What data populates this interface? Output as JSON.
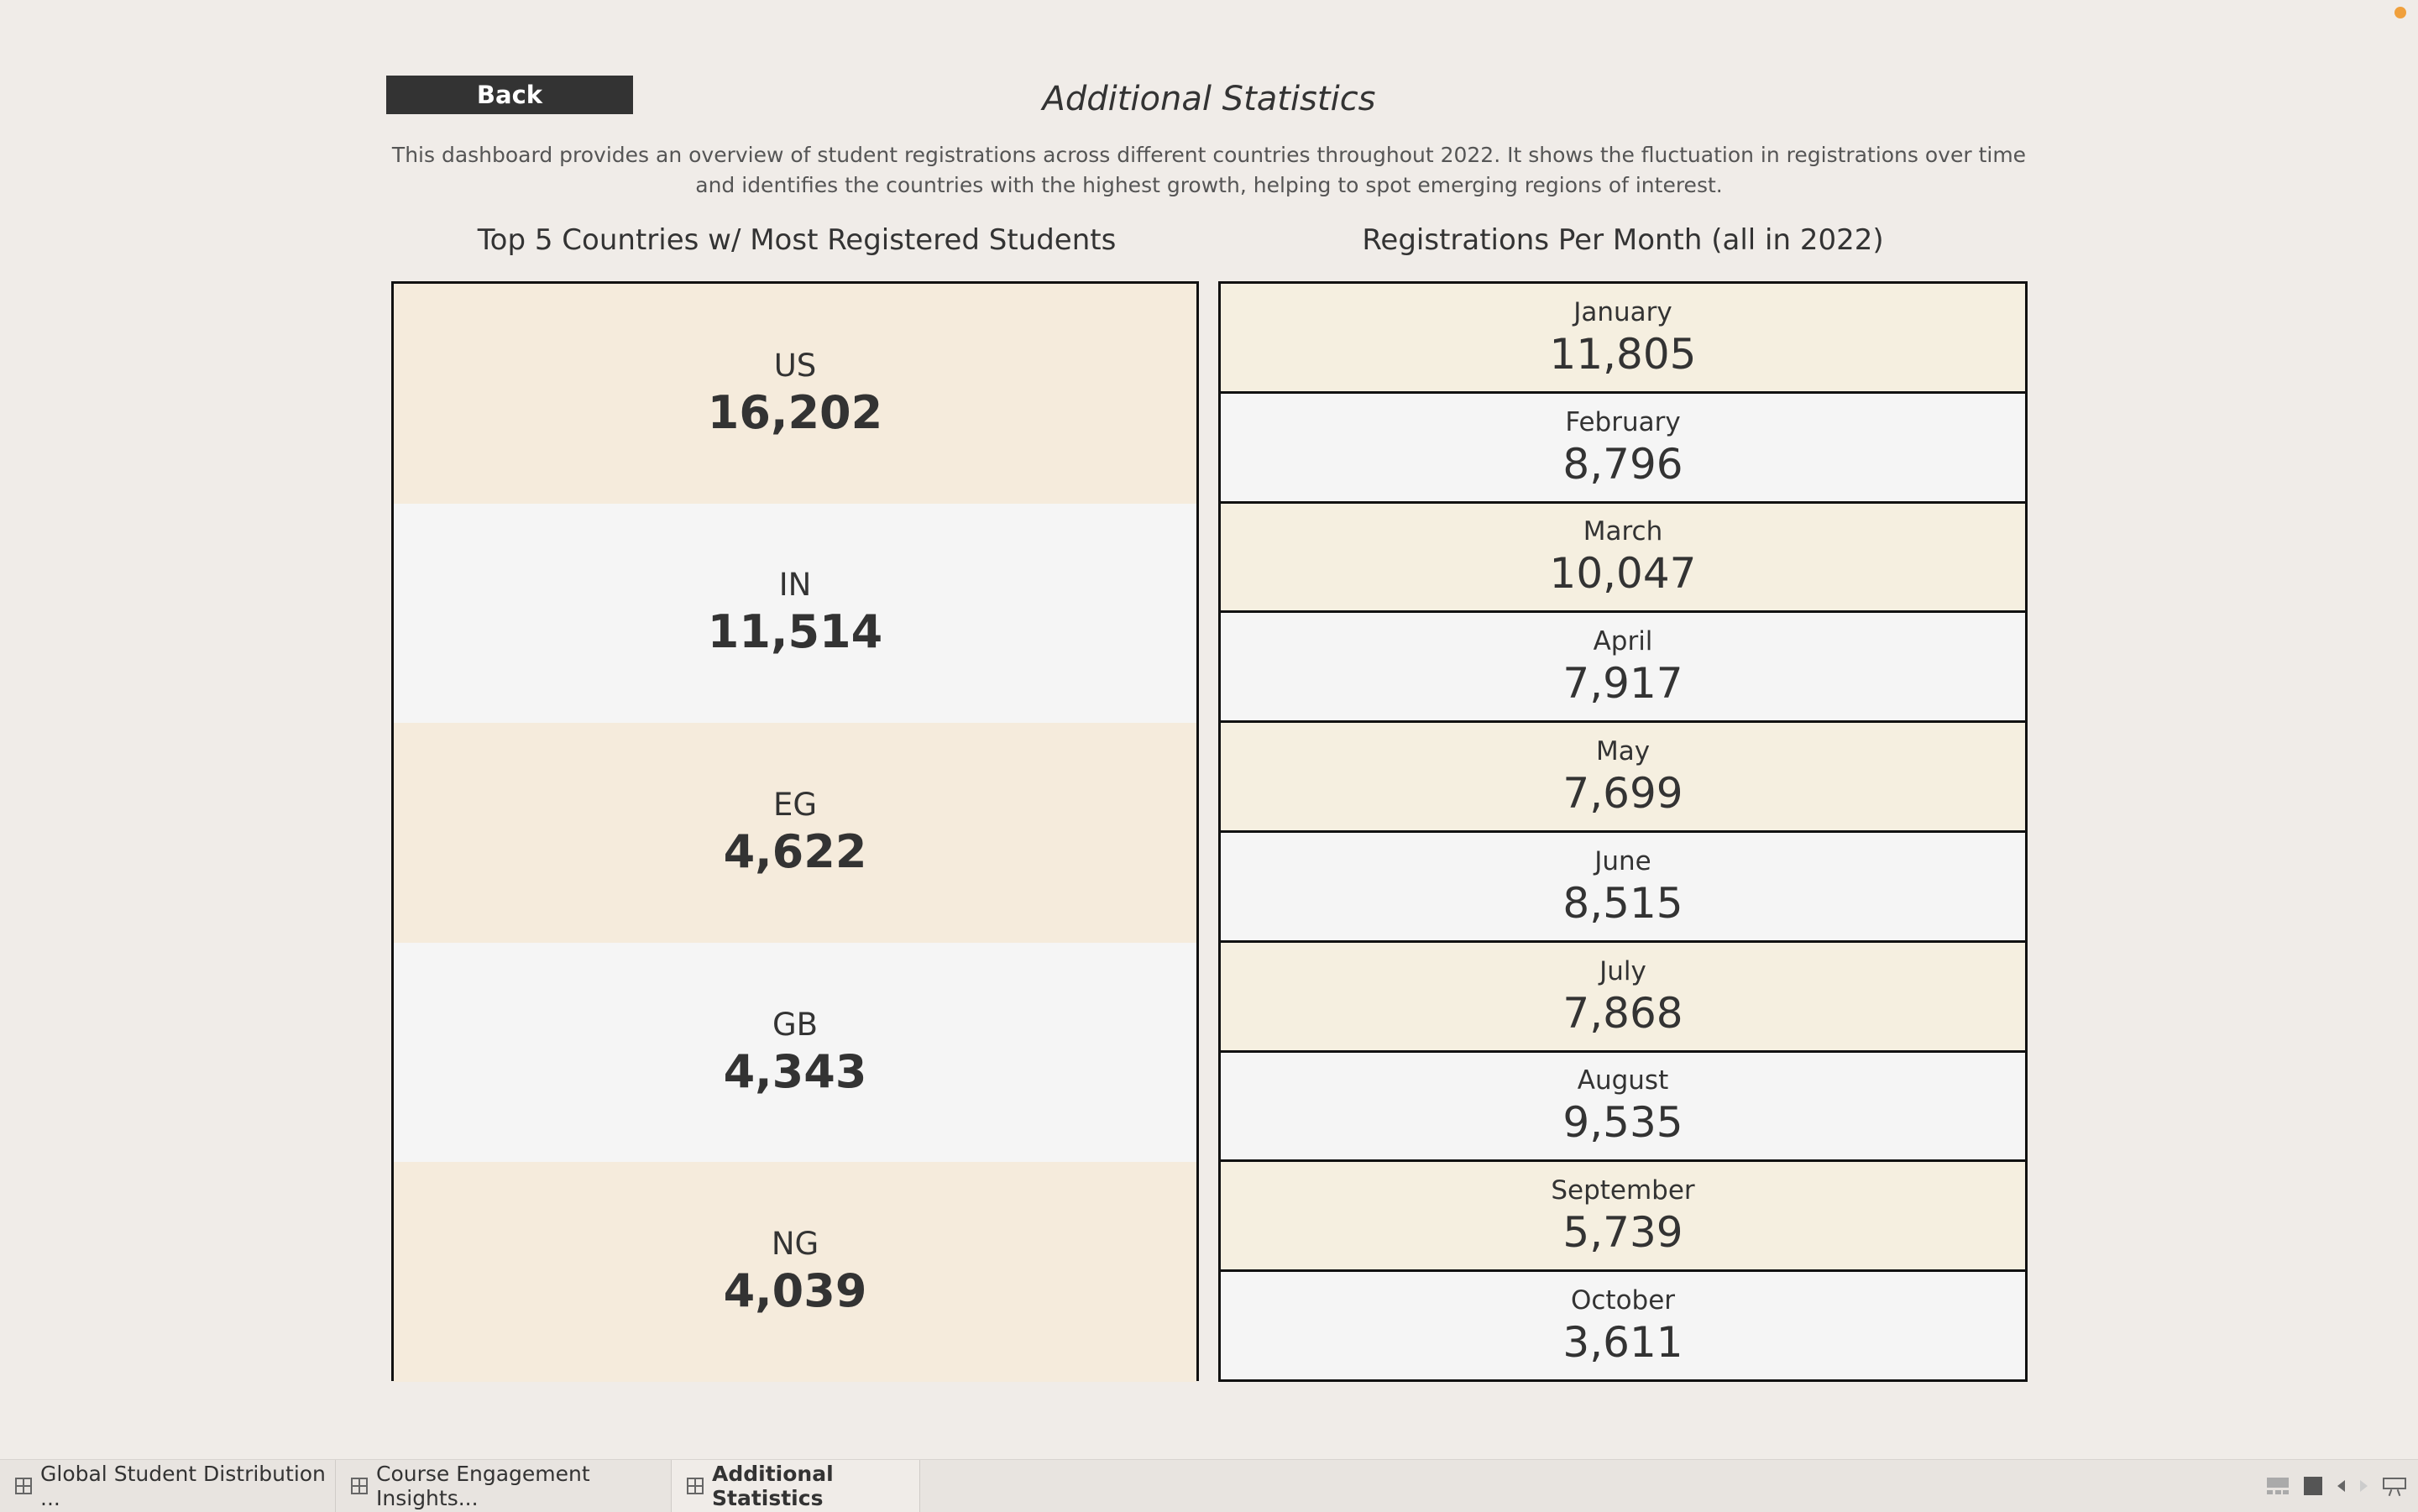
{
  "header": {
    "back_label": "Back",
    "title": "Additional Statistics",
    "description": "This dashboard provides an overview of student registrations across different countries throughout 2022. It shows the fluctuation in registrations over time and identifies the countries with the highest growth, helping to spot emerging regions of interest."
  },
  "countries": {
    "title": "Top 5 Countries w/ Most Registered Students",
    "items": [
      {
        "code": "US",
        "value": "16,202"
      },
      {
        "code": "IN",
        "value": "11,514"
      },
      {
        "code": "EG",
        "value": "4,622"
      },
      {
        "code": "GB",
        "value": "4,343"
      },
      {
        "code": "NG",
        "value": "4,039"
      }
    ]
  },
  "months": {
    "title": "Registrations Per Month (all in 2022)",
    "items": [
      {
        "name": "January",
        "value": "11,805"
      },
      {
        "name": "February",
        "value": "8,796"
      },
      {
        "name": "March",
        "value": "10,047"
      },
      {
        "name": "April",
        "value": "7,917"
      },
      {
        "name": "May",
        "value": "7,699"
      },
      {
        "name": "June",
        "value": "8,515"
      },
      {
        "name": "July",
        "value": "7,868"
      },
      {
        "name": "August",
        "value": "9,535"
      },
      {
        "name": "September",
        "value": "5,739"
      },
      {
        "name": "October",
        "value": "3,611"
      }
    ]
  },
  "tabs": [
    {
      "label": "Global Student Distribution ...",
      "icon": "worksheet-grid-icon",
      "active": false
    },
    {
      "label": "Course Engagement Insights...",
      "icon": "worksheet-grid-icon",
      "active": false
    },
    {
      "label": "Additional Statistics",
      "icon": "worksheet-grid-icon",
      "active": true
    }
  ],
  "toolbar_controls": [
    "filmstrip-view-icon",
    "single-view-icon",
    "previous-sheet-icon",
    "next-sheet-icon",
    "presentation-mode-icon"
  ],
  "colors": {
    "background": "#f0ece8",
    "cell_beige": "#f5ebdc",
    "cell_light": "#f5f5f5",
    "back_button": "#333333",
    "status_dot": "#f0a03c"
  }
}
